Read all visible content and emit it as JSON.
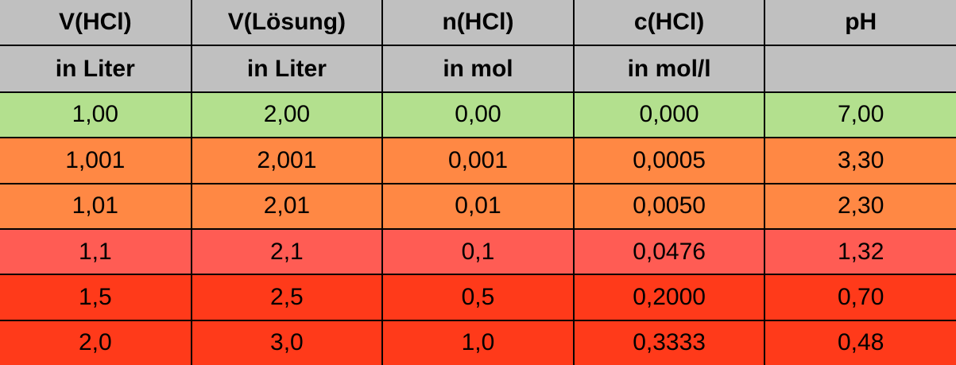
{
  "table": {
    "header_names": [
      "V(HCl)",
      "V(Lösung)",
      "n(HCl)",
      "c(HCl)",
      "pH"
    ],
    "header_units": [
      "in Liter",
      "in Liter",
      "in mol",
      "in mol/l",
      ""
    ],
    "rows": [
      {
        "color": "#b3e08e",
        "cells": [
          "1,00",
          "2,00",
          "0,00",
          "0,000",
          "7,00"
        ]
      },
      {
        "color": "#ff8844",
        "cells": [
          "1,001",
          "2,001",
          "0,001",
          "0,0005",
          "3,30"
        ]
      },
      {
        "color": "#ff8844",
        "cells": [
          "1,01",
          "2,01",
          "0,01",
          "0,0050",
          "2,30"
        ]
      },
      {
        "color": "#ff5c54",
        "cells": [
          "1,1",
          "2,1",
          "0,1",
          "0,0476",
          "1,32"
        ]
      },
      {
        "color": "#ff3a1a",
        "cells": [
          "1,5",
          "2,5",
          "0,5",
          "0,2000",
          "0,70"
        ]
      },
      {
        "color": "#ff3a1a",
        "cells": [
          "2,0",
          "3,0",
          "1,0",
          "0,3333",
          "0,48"
        ]
      }
    ]
  }
}
